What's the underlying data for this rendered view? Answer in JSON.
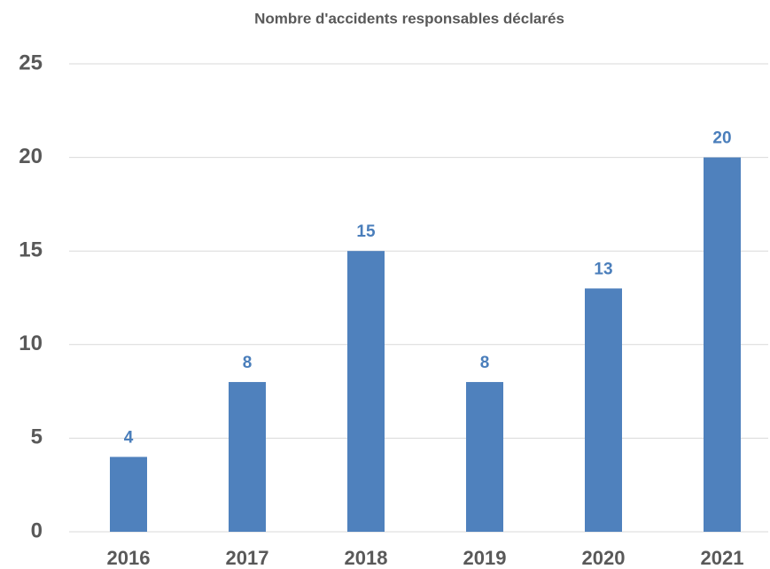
{
  "chart_data": {
    "type": "bar",
    "title": "Nombre d'accidents responsables déclarés",
    "categories": [
      "2016",
      "2017",
      "2018",
      "2019",
      "2020",
      "2021"
    ],
    "values": [
      4,
      8,
      15,
      8,
      13,
      20
    ],
    "color": "#4f81bd",
    "ylim": [
      0,
      25
    ],
    "yticks": [
      0,
      5,
      10,
      15,
      20,
      25
    ],
    "grid": true
  }
}
